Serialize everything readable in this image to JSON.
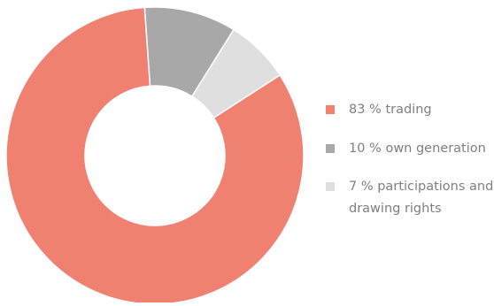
{
  "chart_data": {
    "type": "pie",
    "donut": true,
    "categories": [
      "83 % trading",
      "10 % own generation",
      "7 % participations and drawing rights"
    ],
    "values": [
      83,
      10,
      7
    ],
    "colors": [
      "#f08070",
      "#a9a8a8",
      "#dfdfdf"
    ],
    "legend_position": "right"
  },
  "legend": {
    "items": [
      {
        "label": "83 % trading",
        "color": "#f08070"
      },
      {
        "label": "10 % own generation",
        "color": "#a9a8a8"
      },
      {
        "label": "7 % participations and drawing rights",
        "color": "#dfdfdf"
      }
    ]
  }
}
